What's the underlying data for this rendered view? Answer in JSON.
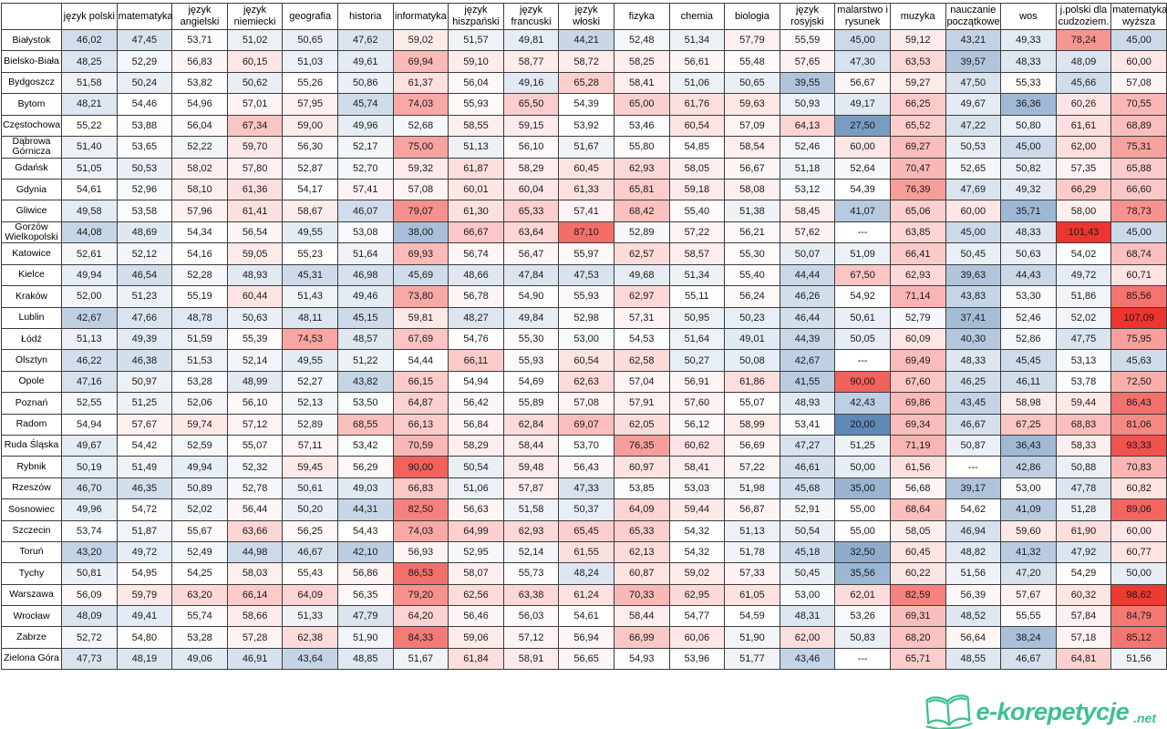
{
  "heatmap": {
    "low_color": "#6089b8",
    "mid_color": "#ffffff",
    "high_color": "#ee342e",
    "min": 20,
    "mid": 54.5,
    "max": 100,
    "missing_text": "---"
  },
  "chart_data": {
    "type": "heatmap",
    "value_format": "comma-decimal",
    "columns": [
      "język polski",
      "matematyka",
      "język angielski",
      "język niemiecki",
      "geografia",
      "historia",
      "informatyka",
      "język hiszpański",
      "język francuski",
      "język włoski",
      "fizyka",
      "chemia",
      "biologia",
      "język rosyjski",
      "malarstwo i rysunek",
      "muzyka",
      "nauczanie początkowe",
      "wos",
      "j.polski dla cudzoziem.",
      "matematyka wyższa"
    ],
    "rows": [
      {
        "city": "Białystok",
        "values": [
          "46,02",
          "47,45",
          "53,71",
          "51,02",
          "50,65",
          "47,62",
          "59,02",
          "51,57",
          "49,81",
          "44,21",
          "52,48",
          "51,34",
          "57,79",
          "55,59",
          "45,00",
          "59,12",
          "43,21",
          "49,33",
          "78,24",
          "45,00"
        ]
      },
      {
        "city": "Bielsko-Biała",
        "values": [
          "48,25",
          "52,29",
          "56,83",
          "60,15",
          "51,03",
          "49,61",
          "69,94",
          "59,10",
          "58,77",
          "58,72",
          "58,25",
          "56,61",
          "55,48",
          "57,65",
          "47,30",
          "63,53",
          "39,57",
          "48,33",
          "48,09",
          "60,00"
        ]
      },
      {
        "city": "Bydgoszcz",
        "values": [
          "51,58",
          "50,24",
          "53,82",
          "50,62",
          "55,26",
          "50,86",
          "61,37",
          "56,04",
          "49,16",
          "65,28",
          "58,41",
          "51,06",
          "50,65",
          "39,55",
          "56,67",
          "59,27",
          "47,50",
          "55,33",
          "45,66",
          "57,08"
        ]
      },
      {
        "city": "Bytom",
        "values": [
          "48,21",
          "54,46",
          "54,96",
          "57,01",
          "57,95",
          "45,74",
          "74,03",
          "55,93",
          "65,50",
          "54,39",
          "65,00",
          "61,76",
          "59,63",
          "50,93",
          "49,17",
          "66,25",
          "49,67",
          "36,36",
          "60,26",
          "70,55"
        ]
      },
      {
        "city": "Częstochowa",
        "values": [
          "55,22",
          "53,88",
          "56,04",
          "67,34",
          "59,00",
          "49,96",
          "52,68",
          "58,55",
          "59,15",
          "53,92",
          "53,46",
          "60,54",
          "57,09",
          "64,13",
          "27,50",
          "65,52",
          "47,22",
          "50,80",
          "61,61",
          "68,89"
        ]
      },
      {
        "city": "Dąbrowa Górnicza",
        "values": [
          "51,40",
          "53,65",
          "52,22",
          "59,70",
          "56,30",
          "52,17",
          "75,00",
          "51,13",
          "56,10",
          "51,67",
          "55,80",
          "54,85",
          "58,54",
          "52,46",
          "60,00",
          "69,27",
          "50,53",
          "45,00",
          "62,00",
          "75,31"
        ]
      },
      {
        "city": "Gdańsk",
        "values": [
          "51,05",
          "50,53",
          "58,02",
          "57,80",
          "52,87",
          "52,70",
          "59,32",
          "61,87",
          "58,29",
          "60,45",
          "62,93",
          "58,05",
          "56,67",
          "51,18",
          "52,64",
          "70,47",
          "52,65",
          "50,82",
          "57,35",
          "65,88"
        ]
      },
      {
        "city": "Gdynia",
        "values": [
          "54,61",
          "52,96",
          "58,10",
          "61,36",
          "54,17",
          "57,41",
          "57,08",
          "60,01",
          "60,04",
          "61,33",
          "65,81",
          "59,18",
          "58,08",
          "53,12",
          "54,39",
          "76,39",
          "47,69",
          "49,32",
          "66,29",
          "66,60"
        ]
      },
      {
        "city": "Gliwice",
        "values": [
          "49,58",
          "53,58",
          "57,96",
          "61,41",
          "58,67",
          "46,07",
          "79,07",
          "61,30",
          "65,33",
          "57,41",
          "68,42",
          "55,40",
          "51,38",
          "58,45",
          "41,07",
          "65,06",
          "60,00",
          "35,71",
          "58,00",
          "78,73"
        ]
      },
      {
        "city": "Gorzów Wielkopolski",
        "values": [
          "44,08",
          "48,69",
          "54,34",
          "56,54",
          "49,55",
          "53,08",
          "38,00",
          "66,67",
          "63,64",
          "87,10",
          "52,89",
          "57,22",
          "56,21",
          "57,62",
          "---",
          "63,85",
          "45,00",
          "48,33",
          "101,43",
          "45,00"
        ]
      },
      {
        "city": "Katowice",
        "values": [
          "52,61",
          "52,12",
          "54,16",
          "59,05",
          "55,23",
          "51,64",
          "69,93",
          "56,74",
          "56,47",
          "55,97",
          "62,57",
          "58,57",
          "55,30",
          "50,07",
          "51,09",
          "66,41",
          "50,45",
          "50,63",
          "54,02",
          "68,74"
        ]
      },
      {
        "city": "Kielce",
        "values": [
          "49,94",
          "46,54",
          "52,28",
          "48,93",
          "45,31",
          "46,98",
          "45,69",
          "48,66",
          "47,84",
          "47,53",
          "49,68",
          "51,34",
          "55,40",
          "44,44",
          "67,50",
          "62,93",
          "39,63",
          "44,43",
          "49,72",
          "60,71"
        ]
      },
      {
        "city": "Kraków",
        "values": [
          "52,00",
          "51,23",
          "55,19",
          "60,44",
          "51,43",
          "49,46",
          "73,80",
          "56,78",
          "54,90",
          "55,93",
          "62,97",
          "55,11",
          "56,24",
          "46,26",
          "54,92",
          "71,14",
          "43,83",
          "53,30",
          "51,86",
          "85,56"
        ]
      },
      {
        "city": "Lublin",
        "values": [
          "42,67",
          "47,66",
          "48,78",
          "50,63",
          "48,11",
          "45,15",
          "59,81",
          "48,27",
          "49,84",
          "52,98",
          "57,31",
          "50,95",
          "50,23",
          "46,44",
          "50,61",
          "52,79",
          "37,41",
          "52,46",
          "52,02",
          "107,09"
        ]
      },
      {
        "city": "Łódź",
        "values": [
          "51,13",
          "49,39",
          "51,59",
          "55,39",
          "74,53",
          "48,57",
          "67,69",
          "54,76",
          "55,30",
          "53,00",
          "54,53",
          "51,64",
          "49,01",
          "44,39",
          "50,05",
          "60,09",
          "40,30",
          "52,86",
          "47,75",
          "75,95"
        ]
      },
      {
        "city": "Olsztyn",
        "values": [
          "46,22",
          "46,38",
          "51,53",
          "52,14",
          "49,55",
          "51,22",
          "54,44",
          "66,11",
          "55,93",
          "60,54",
          "62,58",
          "50,27",
          "50,08",
          "42,67",
          "---",
          "69,49",
          "48,33",
          "45,45",
          "53,13",
          "45,63"
        ]
      },
      {
        "city": "Opole",
        "values": [
          "47,16",
          "50,97",
          "53,28",
          "48,99",
          "52,27",
          "43,82",
          "66,15",
          "54,94",
          "54,69",
          "62,63",
          "57,04",
          "56,91",
          "61,86",
          "41,55",
          "90,00",
          "67,60",
          "46,25",
          "46,11",
          "53,78",
          "72,50"
        ]
      },
      {
        "city": "Poznań",
        "values": [
          "52,55",
          "51,25",
          "52,06",
          "56,10",
          "52,13",
          "53,50",
          "64,87",
          "56,42",
          "55,89",
          "57,08",
          "57,91",
          "57,60",
          "55,07",
          "48,93",
          "42,43",
          "69,86",
          "43,45",
          "58,98",
          "59,44",
          "86,43"
        ]
      },
      {
        "city": "Radom",
        "values": [
          "54,94",
          "57,67",
          "59,74",
          "57,12",
          "52,89",
          "68,55",
          "66,13",
          "56,84",
          "62,84",
          "69,07",
          "62,05",
          "56,12",
          "58,99",
          "53,41",
          "20,00",
          "69,34",
          "46,67",
          "67,25",
          "68,83",
          "81,06"
        ]
      },
      {
        "city": "Ruda Śląska",
        "values": [
          "49,67",
          "54,42",
          "52,59",
          "55,07",
          "57,11",
          "53,42",
          "70,59",
          "58,29",
          "58,44",
          "53,70",
          "76,35",
          "60,62",
          "56,69",
          "47,27",
          "51,25",
          "71,19",
          "50,87",
          "36,43",
          "58,33",
          "93,33"
        ]
      },
      {
        "city": "Rybnik",
        "values": [
          "50,19",
          "51,49",
          "49,94",
          "52,32",
          "59,45",
          "56,29",
          "90,00",
          "50,54",
          "59,48",
          "56,43",
          "60,97",
          "58,41",
          "57,22",
          "46,61",
          "50,00",
          "61,56",
          "---",
          "42,86",
          "50,88",
          "70,83"
        ]
      },
      {
        "city": "Rzeszów",
        "values": [
          "46,70",
          "46,35",
          "50,89",
          "52,78",
          "50,61",
          "49,03",
          "66,83",
          "51,06",
          "57,87",
          "47,33",
          "53,85",
          "53,03",
          "51,98",
          "45,68",
          "35,00",
          "56,68",
          "39,17",
          "53,00",
          "47,78",
          "60,82"
        ]
      },
      {
        "city": "Sosnowiec",
        "values": [
          "49,96",
          "54,72",
          "52,02",
          "56,44",
          "50,20",
          "44,31",
          "82,50",
          "56,63",
          "51,58",
          "50,37",
          "64,09",
          "59,44",
          "56,87",
          "52,91",
          "55,00",
          "68,64",
          "54,62",
          "41,09",
          "51,28",
          "89,06"
        ]
      },
      {
        "city": "Szczecin",
        "values": [
          "53,74",
          "51,87",
          "55,67",
          "63,66",
          "56,25",
          "54,43",
          "74,03",
          "64,99",
          "62,93",
          "65,45",
          "65,33",
          "54,32",
          "51,13",
          "50,54",
          "55,00",
          "58,05",
          "46,94",
          "59,60",
          "61,90",
          "60,00"
        ]
      },
      {
        "city": "Toruń",
        "values": [
          "43,20",
          "49,72",
          "52,49",
          "44,98",
          "46,67",
          "42,10",
          "56,93",
          "52,95",
          "52,14",
          "61,55",
          "62,13",
          "54,32",
          "51,78",
          "45,18",
          "32,50",
          "60,45",
          "48,82",
          "41,32",
          "47,92",
          "60,77"
        ]
      },
      {
        "city": "Tychy",
        "values": [
          "50,81",
          "54,95",
          "54,25",
          "58,03",
          "55,43",
          "56,86",
          "86,53",
          "58,07",
          "55,73",
          "48,24",
          "60,87",
          "59,02",
          "57,33",
          "50,45",
          "35,56",
          "60,22",
          "51,56",
          "47,20",
          "54,29",
          "50,00"
        ]
      },
      {
        "city": "Warszawa",
        "values": [
          "56,09",
          "59,79",
          "63,20",
          "66,14",
          "64,09",
          "56,35",
          "79,20",
          "62,56",
          "63,38",
          "61,24",
          "70,33",
          "62,95",
          "61,05",
          "53,00",
          "62,01",
          "82,59",
          "56,39",
          "57,67",
          "60,32",
          "98,62"
        ]
      },
      {
        "city": "Wrocław",
        "values": [
          "48,09",
          "49,41",
          "55,74",
          "58,66",
          "51,33",
          "47,79",
          "64,20",
          "56,46",
          "56,03",
          "54,61",
          "58,44",
          "54,77",
          "54,59",
          "48,31",
          "53,26",
          "69,31",
          "48,52",
          "55,55",
          "57,84",
          "84,79"
        ]
      },
      {
        "city": "Zabrze",
        "values": [
          "52,72",
          "54,80",
          "53,28",
          "57,28",
          "62,38",
          "51,90",
          "84,33",
          "59,06",
          "57,12",
          "56,94",
          "66,99",
          "60,06",
          "51,90",
          "62,00",
          "50,83",
          "68,20",
          "56,64",
          "38,24",
          "57,18",
          "85,12"
        ]
      },
      {
        "city": "Zielona Góra",
        "values": [
          "47,73",
          "48,19",
          "49,06",
          "46,91",
          "43,64",
          "48,85",
          "51,67",
          "61,84",
          "58,91",
          "56,65",
          "54,93",
          "53,96",
          "51,77",
          "43,46",
          "---",
          "65,71",
          "48,55",
          "46,67",
          "64,81",
          "51,56"
        ]
      }
    ]
  },
  "footer": {
    "logo_text": "e-korepetycje",
    "logo_suffix": ".net",
    "logo_color": "#3ec08f"
  }
}
